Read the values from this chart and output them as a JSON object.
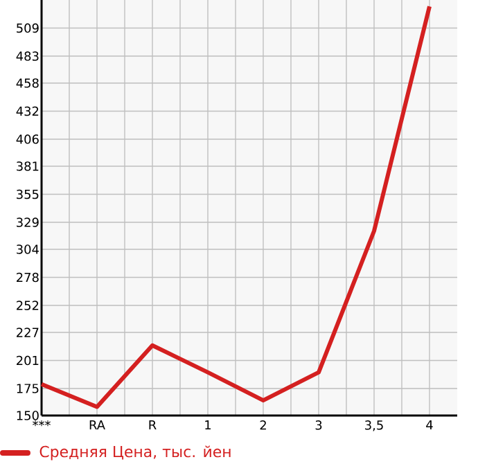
{
  "chart_data": {
    "type": "line",
    "categories": [
      "***",
      "RA",
      "R",
      "1",
      "2",
      "3",
      "3,5",
      "4"
    ],
    "series": [
      {
        "name": "Средняя Цена, тыс. йен",
        "color": "#d42020",
        "values": [
          179,
          158,
          215,
          190,
          164,
          190,
          321,
          529
        ]
      }
    ],
    "ylim": [
      150,
      535
    ],
    "yticks": [
      150,
      175,
      201,
      227,
      252,
      278,
      304,
      329,
      355,
      381,
      406,
      432,
      458,
      483,
      509
    ],
    "grid": true,
    "legend": "bottom",
    "marker": "none",
    "line_style": "solid"
  }
}
